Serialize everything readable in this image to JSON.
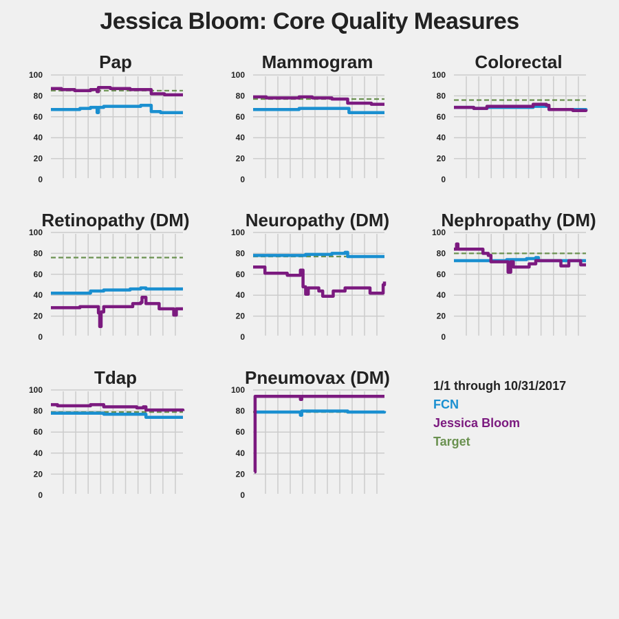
{
  "title": "Jessica Bloom: Core Quality Measures",
  "legend": {
    "date_range": "1/1 through 10/31/2017",
    "entries": [
      {
        "name": "FCN",
        "color": "#1a8fd0"
      },
      {
        "name": "Jessica Bloom",
        "color": "#7b1a7f"
      },
      {
        "name": "Target",
        "color": "#6a9150"
      }
    ]
  },
  "colors": {
    "fcn": "#1a8fd0",
    "provider": "#7b1a7f",
    "target": "#6a9150",
    "grid": "#cccccc"
  },
  "chart_data": [
    {
      "type": "line",
      "title": "Pap",
      "ylim": [
        0,
        100
      ],
      "yticks": [
        0,
        20,
        40,
        60,
        80,
        100
      ],
      "x_range": [
        0,
        100
      ],
      "grid": true,
      "series": [
        {
          "name": "FCN",
          "line": "solid",
          "points": [
            [
              0,
              67
            ],
            [
              12,
              67
            ],
            [
              22,
              68
            ],
            [
              30,
              69
            ],
            [
              34,
              69
            ],
            [
              35,
              64
            ],
            [
              36,
              69
            ],
            [
              40,
              70
            ],
            [
              55,
              70
            ],
            [
              68,
              71
            ],
            [
              75,
              71
            ],
            [
              76,
              65
            ],
            [
              82,
              65
            ],
            [
              83,
              64
            ],
            [
              100,
              64
            ]
          ]
        },
        {
          "name": "Jessica Bloom",
          "line": "solid",
          "points": [
            [
              0,
              87
            ],
            [
              8,
              86
            ],
            [
              18,
              85
            ],
            [
              30,
              86
            ],
            [
              34,
              86
            ],
            [
              35,
              84
            ],
            [
              36,
              88
            ],
            [
              45,
              87
            ],
            [
              55,
              87
            ],
            [
              60,
              86
            ],
            [
              75,
              86
            ],
            [
              76,
              82
            ],
            [
              85,
              82
            ],
            [
              86,
              81
            ],
            [
              100,
              81
            ]
          ]
        },
        {
          "name": "Target",
          "line": "dashed",
          "points": [
            [
              0,
              85
            ],
            [
              100,
              85
            ]
          ]
        }
      ]
    },
    {
      "type": "line",
      "title": "Mammogram",
      "ylim": [
        0,
        100
      ],
      "yticks": [
        0,
        20,
        40,
        60,
        80,
        100
      ],
      "x_range": [
        0,
        100
      ],
      "grid": true,
      "series": [
        {
          "name": "FCN",
          "line": "solid",
          "points": [
            [
              0,
              67
            ],
            [
              30,
              67
            ],
            [
              35,
              68
            ],
            [
              55,
              68
            ],
            [
              72,
              68
            ],
            [
              73,
              64
            ],
            [
              100,
              64
            ]
          ]
        },
        {
          "name": "Jessica Bloom",
          "line": "solid",
          "points": [
            [
              0,
              79
            ],
            [
              10,
              78
            ],
            [
              20,
              78
            ],
            [
              35,
              79
            ],
            [
              45,
              78
            ],
            [
              60,
              77
            ],
            [
              70,
              77
            ],
            [
              72,
              73
            ],
            [
              85,
              73
            ],
            [
              90,
              72
            ],
            [
              100,
              72
            ]
          ]
        },
        {
          "name": "Target",
          "line": "dashed",
          "points": [
            [
              0,
              77
            ],
            [
              100,
              77
            ]
          ]
        }
      ]
    },
    {
      "type": "line",
      "title": "Colorectal",
      "ylim": [
        0,
        100
      ],
      "yticks": [
        0,
        20,
        40,
        60,
        80,
        100
      ],
      "x_range": [
        0,
        100
      ],
      "grid": true,
      "series": [
        {
          "name": "FCN",
          "line": "solid",
          "points": [
            [
              0,
              69
            ],
            [
              15,
              68
            ],
            [
              25,
              69
            ],
            [
              45,
              69
            ],
            [
              60,
              70
            ],
            [
              70,
              70
            ],
            [
              72,
              67
            ],
            [
              85,
              67
            ],
            [
              100,
              66
            ]
          ]
        },
        {
          "name": "Jessica Bloom",
          "line": "solid",
          "points": [
            [
              0,
              69
            ],
            [
              15,
              68
            ],
            [
              25,
              70
            ],
            [
              45,
              70
            ],
            [
              60,
              72
            ],
            [
              70,
              71
            ],
            [
              72,
              67
            ],
            [
              85,
              67
            ],
            [
              90,
              66
            ],
            [
              100,
              67
            ]
          ]
        },
        {
          "name": "Target",
          "line": "dashed",
          "points": [
            [
              0,
              76
            ],
            [
              100,
              76
            ]
          ]
        }
      ]
    },
    {
      "type": "line",
      "title": "Retinopathy (DM)",
      "ylim": [
        0,
        100
      ],
      "yticks": [
        0,
        20,
        40,
        60,
        80,
        100
      ],
      "x_range": [
        0,
        100
      ],
      "grid": true,
      "series": [
        {
          "name": "FCN",
          "line": "solid",
          "points": [
            [
              0,
              42
            ],
            [
              10,
              42
            ],
            [
              20,
              42
            ],
            [
              30,
              44
            ],
            [
              40,
              45
            ],
            [
              50,
              45
            ],
            [
              60,
              46
            ],
            [
              68,
              47
            ],
            [
              72,
              46
            ],
            [
              80,
              46
            ],
            [
              90,
              46
            ],
            [
              100,
              46
            ]
          ]
        },
        {
          "name": "Jessica Bloom",
          "line": "solid",
          "points": [
            [
              0,
              28
            ],
            [
              20,
              28
            ],
            [
              22,
              29
            ],
            [
              35,
              29
            ],
            [
              36,
              23
            ],
            [
              37,
              10
            ],
            [
              38,
              24
            ],
            [
              40,
              29
            ],
            [
              55,
              29
            ],
            [
              62,
              32
            ],
            [
              68,
              33
            ],
            [
              69,
              38
            ],
            [
              72,
              32
            ],
            [
              80,
              32
            ],
            [
              82,
              27
            ],
            [
              92,
              27
            ],
            [
              93,
              21
            ],
            [
              95,
              27
            ],
            [
              100,
              27
            ]
          ]
        },
        {
          "name": "Target",
          "line": "dashed",
          "points": [
            [
              0,
              76
            ],
            [
              100,
              76
            ]
          ]
        }
      ]
    },
    {
      "type": "line",
      "title": "Neuropathy (DM)",
      "ylim": [
        0,
        100
      ],
      "yticks": [
        0,
        20,
        40,
        60,
        80,
        100
      ],
      "x_range": [
        0,
        100
      ],
      "grid": true,
      "series": [
        {
          "name": "FCN",
          "line": "solid",
          "points": [
            [
              0,
              78
            ],
            [
              20,
              78
            ],
            [
              40,
              79
            ],
            [
              60,
              80
            ],
            [
              70,
              81
            ],
            [
              72,
              77
            ],
            [
              85,
              77
            ],
            [
              100,
              77
            ]
          ]
        },
        {
          "name": "Jessica Bloom",
          "line": "solid",
          "points": [
            [
              0,
              67
            ],
            [
              8,
              67
            ],
            [
              9,
              61
            ],
            [
              25,
              61
            ],
            [
              26,
              59
            ],
            [
              35,
              59
            ],
            [
              36,
              64
            ],
            [
              38,
              48
            ],
            [
              40,
              41
            ],
            [
              42,
              47
            ],
            [
              48,
              47
            ],
            [
              50,
              44
            ],
            [
              52,
              44
            ],
            [
              53,
              39
            ],
            [
              60,
              39
            ],
            [
              61,
              44
            ],
            [
              68,
              44
            ],
            [
              70,
              47
            ],
            [
              88,
              47
            ],
            [
              89,
              42
            ],
            [
              98,
              42
            ],
            [
              99,
              50
            ],
            [
              100,
              53
            ]
          ]
        },
        {
          "name": "Target",
          "line": "dashed",
          "points": [
            [
              0,
              77
            ],
            [
              100,
              77
            ]
          ]
        }
      ]
    },
    {
      "type": "line",
      "title": "Nephropathy (DM)",
      "ylim": [
        0,
        100
      ],
      "yticks": [
        0,
        20,
        40,
        60,
        80,
        100
      ],
      "x_range": [
        0,
        100
      ],
      "grid": true,
      "series": [
        {
          "name": "FCN",
          "line": "solid",
          "points": [
            [
              0,
              73
            ],
            [
              15,
              73
            ],
            [
              25,
              73
            ],
            [
              40,
              74
            ],
            [
              55,
              75
            ],
            [
              62,
              76
            ],
            [
              64,
              73
            ],
            [
              80,
              73
            ],
            [
              100,
              73
            ]
          ]
        },
        {
          "name": "Jessica Bloom",
          "line": "solid",
          "points": [
            [
              0,
              84
            ],
            [
              2,
              89
            ],
            [
              3,
              84
            ],
            [
              20,
              84
            ],
            [
              22,
              80
            ],
            [
              26,
              78
            ],
            [
              28,
              72
            ],
            [
              40,
              72
            ],
            [
              41,
              62
            ],
            [
              43,
              72
            ],
            [
              45,
              67
            ],
            [
              55,
              67
            ],
            [
              57,
              70
            ],
            [
              60,
              70
            ],
            [
              62,
              73
            ],
            [
              80,
              73
            ],
            [
              81,
              68
            ],
            [
              85,
              68
            ],
            [
              87,
              73
            ],
            [
              95,
              73
            ],
            [
              96,
              69
            ],
            [
              100,
              69
            ]
          ]
        },
        {
          "name": "Target",
          "line": "dashed",
          "points": [
            [
              0,
              80
            ],
            [
              100,
              80
            ]
          ]
        }
      ]
    },
    {
      "type": "line",
      "title": "Tdap",
      "ylim": [
        0,
        100
      ],
      "yticks": [
        0,
        20,
        40,
        60,
        80,
        100
      ],
      "x_range": [
        0,
        100
      ],
      "grid": true,
      "series": [
        {
          "name": "FCN",
          "line": "solid",
          "points": [
            [
              0,
              78
            ],
            [
              20,
              78
            ],
            [
              40,
              77
            ],
            [
              60,
              77
            ],
            [
              70,
              77
            ],
            [
              72,
              74
            ],
            [
              85,
              74
            ],
            [
              100,
              74
            ]
          ]
        },
        {
          "name": "Jessica Bloom",
          "line": "solid",
          "points": [
            [
              0,
              86
            ],
            [
              5,
              85
            ],
            [
              15,
              85
            ],
            [
              30,
              86
            ],
            [
              40,
              84
            ],
            [
              55,
              84
            ],
            [
              65,
              83
            ],
            [
              70,
              84
            ],
            [
              72,
              81
            ],
            [
              85,
              81
            ],
            [
              100,
              80
            ]
          ]
        },
        {
          "name": "Target",
          "line": "dashed",
          "points": [
            [
              0,
              79
            ],
            [
              100,
              79
            ]
          ]
        }
      ]
    },
    {
      "type": "line",
      "title": "Pneumovax (DM)",
      "ylim": [
        0,
        100
      ],
      "yticks": [
        0,
        20,
        40,
        60,
        80,
        100
      ],
      "x_range": [
        0,
        100
      ],
      "grid": true,
      "series": [
        {
          "name": "FCN",
          "line": "solid",
          "points": [
            [
              2,
              79
            ],
            [
              20,
              79
            ],
            [
              35,
              79
            ],
            [
              36,
              76
            ],
            [
              37,
              80
            ],
            [
              50,
              80
            ],
            [
              70,
              80
            ],
            [
              72,
              79
            ],
            [
              85,
              79
            ],
            [
              100,
              80
            ]
          ]
        },
        {
          "name": "Jessica Bloom",
          "line": "solid",
          "points": [
            [
              1,
              22
            ],
            [
              1.5,
              94
            ],
            [
              30,
              94
            ],
            [
              35,
              94
            ],
            [
              36,
              91
            ],
            [
              37,
              94
            ],
            [
              60,
              94
            ],
            [
              100,
              94
            ]
          ]
        },
        {
          "name": "Target",
          "line": "dashed",
          "points": [
            [
              0,
              79
            ],
            [
              100,
              79
            ]
          ]
        }
      ]
    }
  ]
}
